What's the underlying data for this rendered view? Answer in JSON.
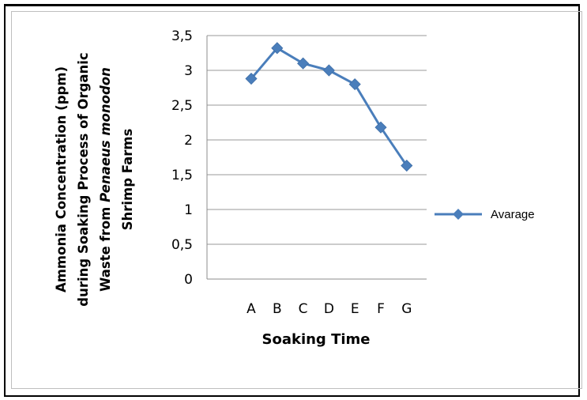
{
  "chart_data": {
    "type": "line",
    "categories": [
      "A",
      "B",
      "C",
      "D",
      "E",
      "F",
      "G"
    ],
    "series": [
      {
        "name": "Avarage",
        "values": [
          2.88,
          3.32,
          3.1,
          3.0,
          2.8,
          2.18,
          1.63
        ],
        "color": "#4a7ebb"
      }
    ],
    "yticks": [
      "0",
      "0,5",
      "1",
      "1,5",
      "2",
      "2,5",
      "3",
      "3,5"
    ],
    "ylim": [
      0,
      3.5
    ],
    "ylabel_lines": [
      "Ammonia Concentration (ppm)",
      "during Soaking Process of Organic",
      "Waste from |Penaeus monodon|",
      "Shrimp Farms"
    ],
    "xlabel": "Soaking Time",
    "grid": "horizontal",
    "legend": "right"
  }
}
